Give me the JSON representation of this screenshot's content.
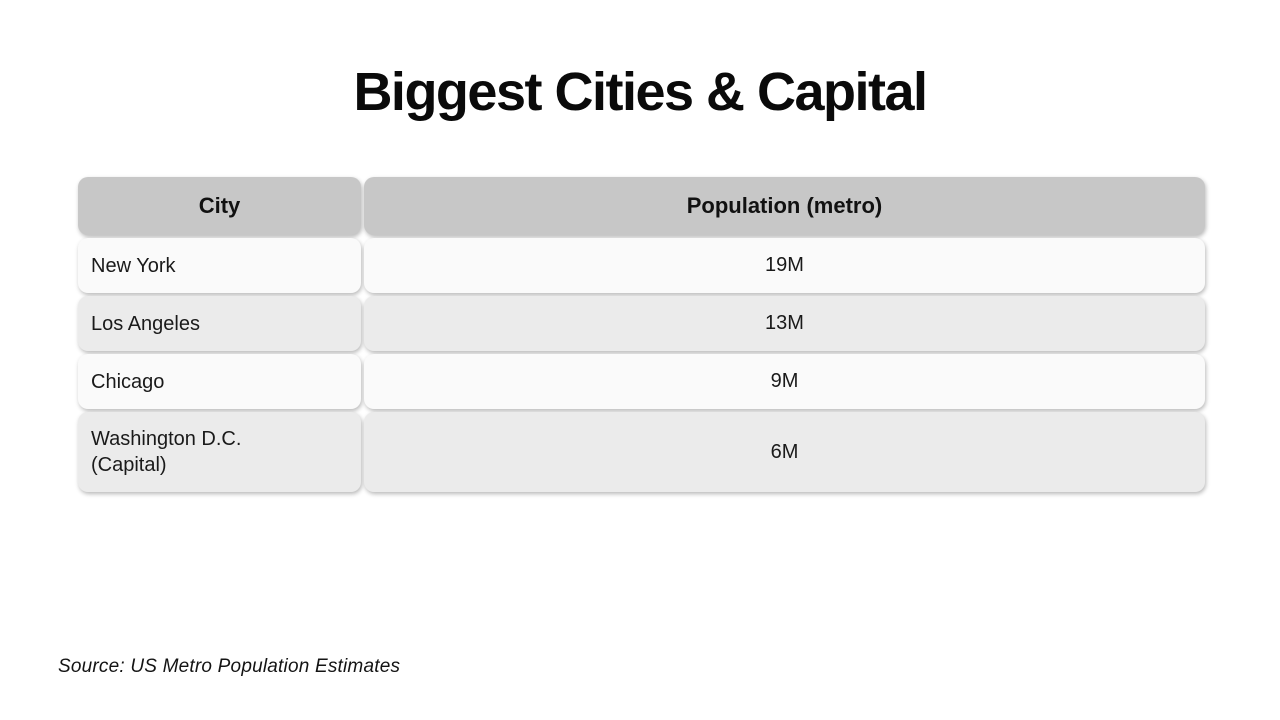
{
  "slide": {
    "title": "Biggest Cities & Capital",
    "source_note": "Source: US Metro Population Estimates"
  },
  "table": {
    "columns": [
      {
        "label": "City"
      },
      {
        "label": "Population (metro)"
      }
    ],
    "rows": [
      {
        "city": "New York",
        "population": "19M"
      },
      {
        "city": "Los Angeles",
        "population": "13M"
      },
      {
        "city": "Chicago",
        "population": "9M"
      },
      {
        "city": "Washington D.C.\n(Capital)",
        "population": "6M"
      }
    ]
  },
  "colors": {
    "background": "#ffffff",
    "header_bg": "#c7c7c7",
    "row_light": "#fafafa",
    "row_dark": "#ebebeb",
    "text": "#1a1a1a"
  }
}
